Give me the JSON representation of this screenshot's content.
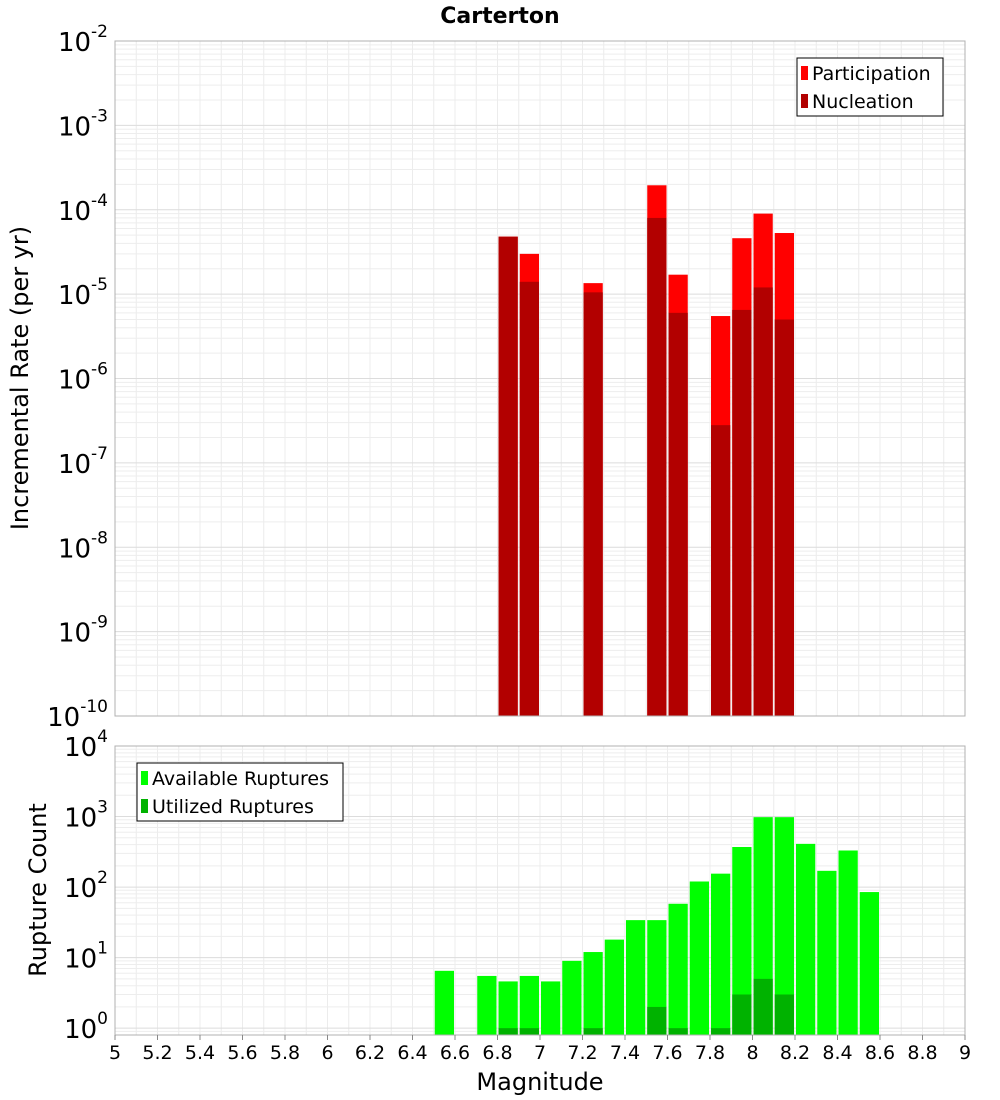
{
  "chart_data": [
    {
      "type": "bar",
      "title": "Carterton",
      "ylabel": "Incremental Rate (per yr)",
      "xlabel": "",
      "xlim": [
        5,
        9
      ],
      "ylim": [
        1e-10,
        0.01
      ],
      "yscale": "log",
      "grid": true,
      "bin_width": 0.1,
      "legend_position": "top-right",
      "series": [
        {
          "name": "Participation",
          "color": "#ff0000",
          "x": [
            6.85,
            6.95,
            7.25,
            7.55,
            7.65,
            7.85,
            7.95,
            8.05,
            8.15
          ],
          "values": [
            4.8e-05,
            3e-05,
            1.35e-05,
            0.000195,
            1.7e-05,
            5.5e-06,
            4.6e-05,
            9e-05,
            5.3e-05
          ]
        },
        {
          "name": "Nucleation",
          "color": "#b20000",
          "x": [
            6.85,
            6.95,
            7.25,
            7.55,
            7.65,
            7.85,
            7.95,
            8.05,
            8.15
          ],
          "values": [
            4.8e-05,
            1.4e-05,
            1.05e-05,
            8e-05,
            6e-06,
            2.8e-07,
            6.5e-06,
            1.2e-05,
            5e-06
          ]
        }
      ],
      "y_ticks": [
        {
          "base": "10",
          "exp": "-2"
        },
        {
          "base": "10",
          "exp": "-3"
        },
        {
          "base": "10",
          "exp": "-4"
        },
        {
          "base": "10",
          "exp": "-5"
        },
        {
          "base": "10",
          "exp": "-6"
        },
        {
          "base": "10",
          "exp": "-7"
        },
        {
          "base": "10",
          "exp": "-8"
        },
        {
          "base": "10",
          "exp": "-9"
        },
        {
          "base": "10",
          "exp": "-10"
        }
      ]
    },
    {
      "type": "bar",
      "title": "",
      "ylabel": "Rupture Count",
      "xlabel": "Magnitude",
      "xlim": [
        5,
        9
      ],
      "ylim": [
        0.8,
        10000
      ],
      "yscale": "log",
      "grid": true,
      "bin_width": 0.1,
      "legend_position": "top-left",
      "series": [
        {
          "name": "Available Ruptures",
          "color": "#00ff00",
          "x": [
            6.55,
            6.75,
            6.85,
            6.95,
            7.05,
            7.15,
            7.25,
            7.35,
            7.45,
            7.55,
            7.65,
            7.75,
            7.85,
            7.95,
            8.05,
            8.15,
            8.25,
            8.35,
            8.45,
            8.55
          ],
          "values": [
            6.5,
            5.5,
            4.6,
            5.5,
            4.6,
            9,
            12,
            18,
            34,
            34,
            58,
            120,
            155,
            370,
            980,
            980,
            410,
            170,
            330,
            85
          ]
        },
        {
          "name": "Utilized Ruptures",
          "color": "#00b200",
          "x": [
            6.85,
            6.95,
            7.25,
            7.55,
            7.65,
            7.85,
            7.95,
            8.05,
            8.15
          ],
          "values": [
            1,
            1,
            1,
            2,
            1,
            1,
            3,
            5,
            3
          ]
        }
      ],
      "y_ticks": [
        {
          "base": "10",
          "exp": "4"
        },
        {
          "base": "10",
          "exp": "3"
        },
        {
          "base": "10",
          "exp": "2"
        },
        {
          "base": "10",
          "exp": "1"
        },
        {
          "base": "10",
          "exp": "0"
        }
      ],
      "x_ticks": [
        "5",
        "5.2",
        "5.4",
        "5.6",
        "5.8",
        "6",
        "6.2",
        "6.4",
        "6.6",
        "6.8",
        "7",
        "7.2",
        "7.4",
        "7.6",
        "7.8",
        "8",
        "8.2",
        "8.4",
        "8.6",
        "8.8",
        "9"
      ]
    }
  ]
}
